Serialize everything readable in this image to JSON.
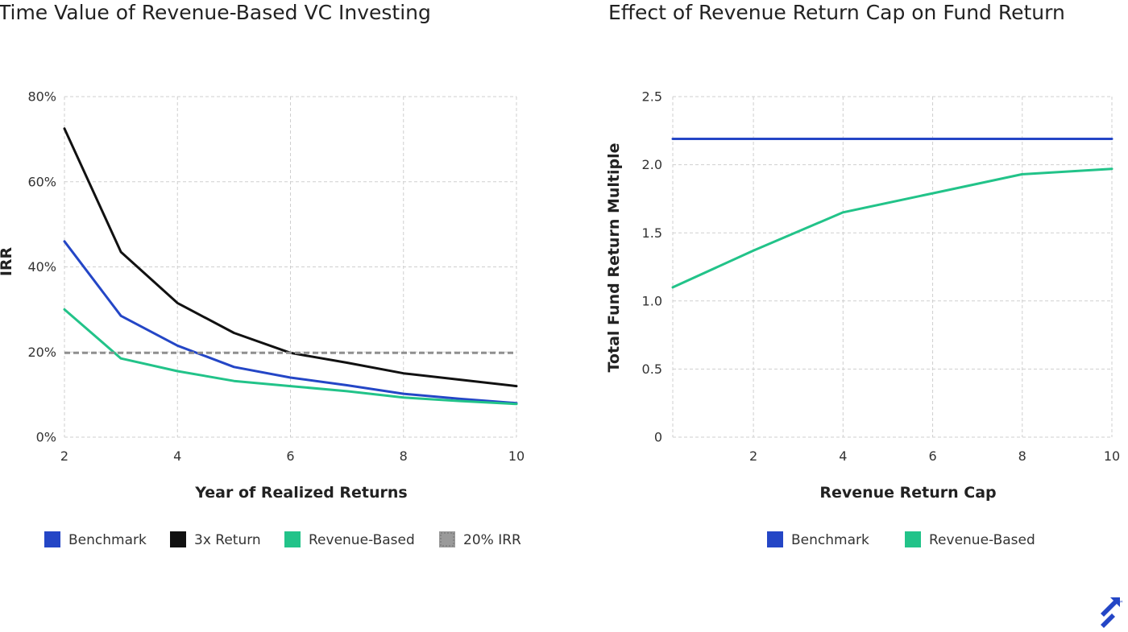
{
  "colors": {
    "benchmark": "#2446c6",
    "three_x": "#111111",
    "revenue_based": "#22c389",
    "irr_20": "#8f8f8f",
    "grid": "#cfcfcf"
  },
  "chart_data": [
    {
      "type": "line",
      "title": "Time Value of Revenue-Based VC Investing",
      "xlabel": "Year of Realized Returns",
      "ylabel": "IRR",
      "xlim": [
        2,
        10
      ],
      "ylim": [
        0,
        80
      ],
      "x_ticks": [
        2,
        4,
        6,
        8,
        10
      ],
      "y_ticks": [
        0,
        20,
        40,
        60,
        80
      ],
      "y_tick_labels": [
        "0%",
        "20%",
        "40%",
        "60%",
        "80%"
      ],
      "grid": true,
      "legend_position": "bottom",
      "series": [
        {
          "name": "Benchmark",
          "key": "benchmark",
          "x": [
            2,
            3,
            4,
            5,
            6,
            7,
            8,
            9,
            10
          ],
          "y": [
            46,
            28.5,
            21.5,
            16.5,
            14,
            12.2,
            10.2,
            9,
            8
          ]
        },
        {
          "name": "3x Return",
          "key": "three_x",
          "x": [
            2,
            3,
            4,
            5,
            6,
            7,
            8,
            9,
            10
          ],
          "y": [
            72.5,
            43.5,
            31.5,
            24.5,
            19.8,
            17.5,
            15,
            13.5,
            12
          ]
        },
        {
          "name": "Revenue-Based",
          "key": "revenue_based",
          "x": [
            2,
            3,
            4,
            5,
            6,
            7,
            8,
            9,
            10
          ],
          "y": [
            30,
            18.5,
            15.5,
            13.2,
            12,
            10.8,
            9.3,
            8.5,
            7.8
          ]
        },
        {
          "name": "20% IRR",
          "key": "irr_20",
          "style": "dashed",
          "x": [
            2,
            10
          ],
          "y": [
            19.8,
            19.8
          ]
        }
      ]
    },
    {
      "type": "line",
      "title": "Effect of Revenue Return Cap on Fund Return",
      "xlabel": "Revenue Return Cap",
      "ylabel": "Total Fund Return Multiple",
      "xlim": [
        0.2,
        10
      ],
      "ylim": [
        0,
        2.5
      ],
      "x_ticks": [
        2,
        4,
        6,
        8,
        10
      ],
      "y_ticks": [
        0,
        0.5,
        1.0,
        1.5,
        2.0,
        2.5
      ],
      "y_tick_labels": [
        "0",
        "0.5",
        "1.0",
        "1.5",
        "2.0",
        "2.5"
      ],
      "grid": true,
      "legend_position": "bottom",
      "series": [
        {
          "name": "Benchmark",
          "key": "benchmark",
          "x": [
            0.2,
            10
          ],
          "y": [
            2.19,
            2.19
          ]
        },
        {
          "name": "Revenue-Based",
          "key": "revenue_based",
          "x": [
            0.2,
            2,
            4,
            6,
            8,
            10
          ],
          "y": [
            1.1,
            1.37,
            1.65,
            1.79,
            1.93,
            1.97
          ]
        }
      ]
    }
  ]
}
